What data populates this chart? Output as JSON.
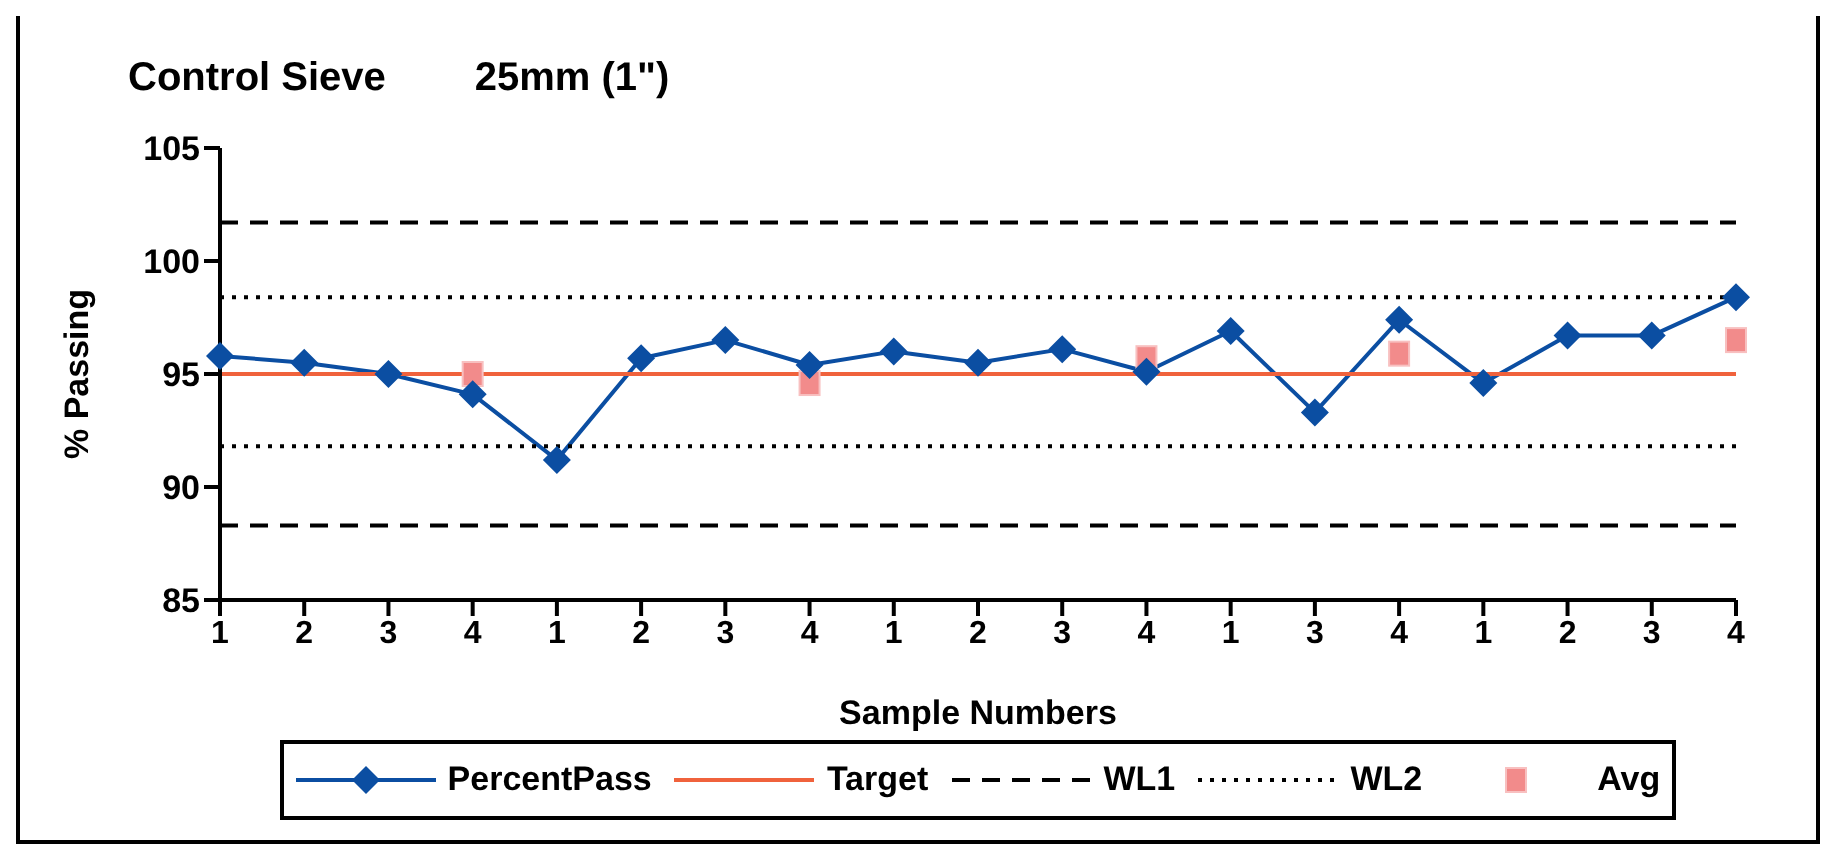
{
  "chart_data": {
    "type": "line",
    "title": "Control Sieve        25mm (1\")",
    "xlabel": "Sample Numbers",
    "ylabel": "% Passing",
    "categories": [
      "1",
      "2",
      "3",
      "4",
      "1",
      "2",
      "3",
      "4",
      "1",
      "2",
      "3",
      "4",
      "1",
      "3",
      "4",
      "1",
      "2",
      "3",
      "4"
    ],
    "series": [
      {
        "name": "PercentPass",
        "color": "#0b4ea2",
        "marker": "diamond",
        "line_style": "solid",
        "values": [
          95.8,
          95.5,
          95.0,
          94.1,
          91.2,
          95.7,
          96.5,
          95.4,
          96.0,
          95.5,
          96.1,
          95.1,
          96.9,
          93.3,
          97.4,
          94.6,
          96.7,
          96.7,
          98.4
        ]
      },
      {
        "name": "Target",
        "color": "#f0623c",
        "marker": "none",
        "line_style": "solid",
        "values": [
          95,
          95,
          95,
          95,
          95,
          95,
          95,
          95,
          95,
          95,
          95,
          95,
          95,
          95,
          95,
          95,
          95,
          95,
          95
        ]
      },
      {
        "name": "WL1",
        "color": "#000000",
        "marker": "none",
        "line_style": "dashed",
        "values": [
          101.7,
          101.7,
          101.7,
          101.7,
          101.7,
          101.7,
          101.7,
          101.7,
          101.7,
          101.7,
          101.7,
          101.7,
          101.7,
          101.7,
          101.7,
          101.7,
          101.7,
          101.7,
          101.7
        ]
      },
      {
        "color": "#000000",
        "marker": "none",
        "line_style": "dashed",
        "values": [
          88.3,
          88.3,
          88.3,
          88.3,
          88.3,
          88.3,
          88.3,
          88.3,
          88.3,
          88.3,
          88.3,
          88.3,
          88.3,
          88.3,
          88.3,
          88.3,
          88.3,
          88.3,
          88.3
        ]
      },
      {
        "name": "WL2",
        "color": "#000000",
        "marker": "none",
        "line_style": "dotted",
        "values": [
          98.4,
          98.4,
          98.4,
          98.4,
          98.4,
          98.4,
          98.4,
          98.4,
          98.4,
          98.4,
          98.4,
          98.4,
          98.4,
          98.4,
          98.4,
          98.4,
          98.4,
          98.4,
          98.4
        ]
      },
      {
        "color": "#000000",
        "marker": "none",
        "line_style": "dotted",
        "values": [
          91.8,
          91.8,
          91.8,
          91.8,
          91.8,
          91.8,
          91.8,
          91.8,
          91.8,
          91.8,
          91.8,
          91.8,
          91.8,
          91.8,
          91.8,
          91.8,
          91.8,
          91.8,
          91.8
        ]
      },
      {
        "name": "Avg",
        "type": "scatter",
        "color": "#f28b8b",
        "marker": "square",
        "values": [
          null,
          null,
          null,
          95.0,
          null,
          null,
          null,
          94.6,
          null,
          null,
          null,
          95.7,
          null,
          null,
          95.9,
          null,
          null,
          null,
          96.5
        ]
      }
    ],
    "ylim": [
      85,
      105
    ],
    "yticks": [
      85,
      90,
      95,
      100,
      105
    ],
    "grid": false,
    "legend": "bottom"
  }
}
